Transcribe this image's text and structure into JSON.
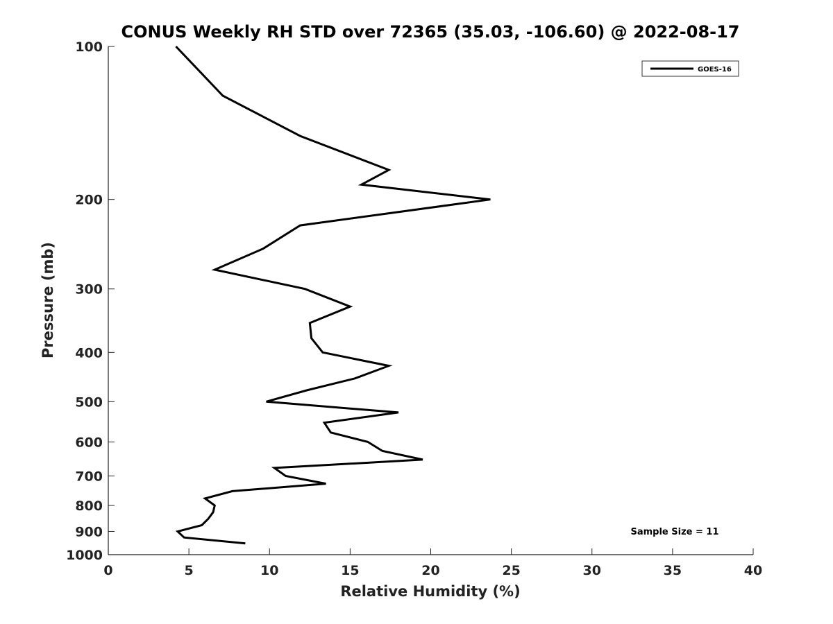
{
  "chart_data": {
    "type": "line",
    "title": "CONUS Weekly RH STD over 72365 (35.03, -106.60) @ 2022-08-17",
    "xlabel": "Relative Humidity (%)",
    "ylabel": "Pressure (mb)",
    "xlim": [
      0,
      40
    ],
    "ylim": [
      100,
      1000
    ],
    "y_scale": "log",
    "y_reversed": true,
    "x_ticks": [
      "0",
      "5",
      "10",
      "15",
      "20",
      "25",
      "30",
      "35",
      "40"
    ],
    "y_ticks": [
      "100",
      "200",
      "300",
      "400",
      "500",
      "600",
      "700",
      "800",
      "900",
      "1000"
    ],
    "grid": false,
    "legend_position": "top-right",
    "line_color": "#000000",
    "series": [
      {
        "name": "GOES-16",
        "points": [
          [
            4.2,
            100
          ],
          [
            7.1,
            125
          ],
          [
            11.9,
            150
          ],
          [
            17.4,
            175
          ],
          [
            15.7,
            187
          ],
          [
            23.7,
            200
          ],
          [
            11.9,
            225
          ],
          [
            9.6,
            250
          ],
          [
            6.6,
            275
          ],
          [
            12.2,
            300
          ],
          [
            15.0,
            325
          ],
          [
            12.5,
            350
          ],
          [
            12.6,
            375
          ],
          [
            13.3,
            400
          ],
          [
            17.4,
            425
          ],
          [
            15.3,
            450
          ],
          [
            12.3,
            475
          ],
          [
            9.8,
            500
          ],
          [
            18.0,
            525
          ],
          [
            13.4,
            550
          ],
          [
            13.8,
            575
          ],
          [
            16.1,
            600
          ],
          [
            17.0,
            625
          ],
          [
            19.5,
            650
          ],
          [
            10.3,
            675
          ],
          [
            11.0,
            700
          ],
          [
            13.5,
            725
          ],
          [
            7.7,
            750
          ],
          [
            6.0,
            775
          ],
          [
            6.6,
            800
          ],
          [
            6.5,
            825
          ],
          [
            6.2,
            850
          ],
          [
            5.8,
            875
          ],
          [
            4.3,
            900
          ],
          [
            4.7,
            925
          ],
          [
            8.5,
            950
          ]
        ]
      }
    ],
    "annotation": "Sample Size = 11"
  }
}
